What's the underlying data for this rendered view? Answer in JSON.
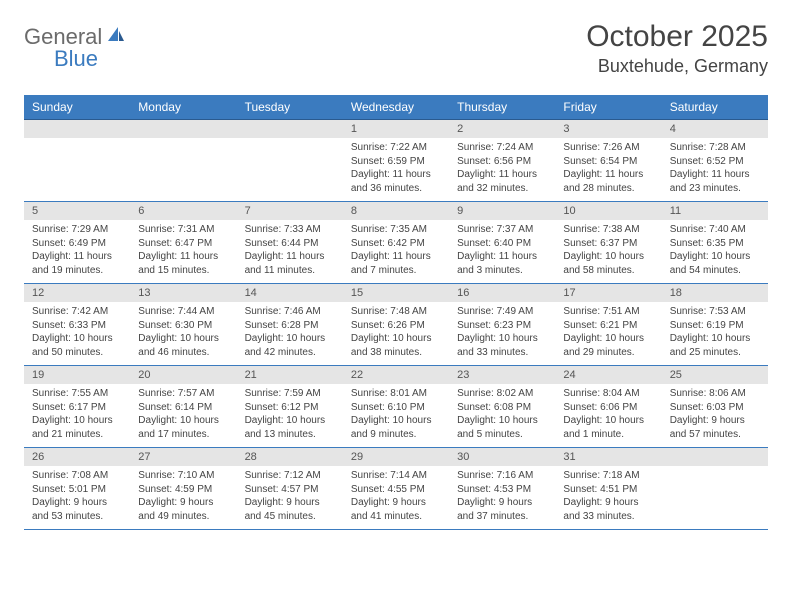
{
  "logo": {
    "text1": "General",
    "text2": "Blue"
  },
  "title": "October 2025",
  "location": "Buxtehude, Germany",
  "header_bg": "#3b7bbf",
  "daynum_bg": "#e5e5e5",
  "border_color": "#3b7bbf",
  "days_of_week": [
    "Sunday",
    "Monday",
    "Tuesday",
    "Wednesday",
    "Thursday",
    "Friday",
    "Saturday"
  ],
  "weeks": [
    [
      {
        "num": "",
        "sunrise": "",
        "sunset": "",
        "daylight": ""
      },
      {
        "num": "",
        "sunrise": "",
        "sunset": "",
        "daylight": ""
      },
      {
        "num": "",
        "sunrise": "",
        "sunset": "",
        "daylight": ""
      },
      {
        "num": "1",
        "sunrise": "Sunrise: 7:22 AM",
        "sunset": "Sunset: 6:59 PM",
        "daylight": "Daylight: 11 hours and 36 minutes."
      },
      {
        "num": "2",
        "sunrise": "Sunrise: 7:24 AM",
        "sunset": "Sunset: 6:56 PM",
        "daylight": "Daylight: 11 hours and 32 minutes."
      },
      {
        "num": "3",
        "sunrise": "Sunrise: 7:26 AM",
        "sunset": "Sunset: 6:54 PM",
        "daylight": "Daylight: 11 hours and 28 minutes."
      },
      {
        "num": "4",
        "sunrise": "Sunrise: 7:28 AM",
        "sunset": "Sunset: 6:52 PM",
        "daylight": "Daylight: 11 hours and 23 minutes."
      }
    ],
    [
      {
        "num": "5",
        "sunrise": "Sunrise: 7:29 AM",
        "sunset": "Sunset: 6:49 PM",
        "daylight": "Daylight: 11 hours and 19 minutes."
      },
      {
        "num": "6",
        "sunrise": "Sunrise: 7:31 AM",
        "sunset": "Sunset: 6:47 PM",
        "daylight": "Daylight: 11 hours and 15 minutes."
      },
      {
        "num": "7",
        "sunrise": "Sunrise: 7:33 AM",
        "sunset": "Sunset: 6:44 PM",
        "daylight": "Daylight: 11 hours and 11 minutes."
      },
      {
        "num": "8",
        "sunrise": "Sunrise: 7:35 AM",
        "sunset": "Sunset: 6:42 PM",
        "daylight": "Daylight: 11 hours and 7 minutes."
      },
      {
        "num": "9",
        "sunrise": "Sunrise: 7:37 AM",
        "sunset": "Sunset: 6:40 PM",
        "daylight": "Daylight: 11 hours and 3 minutes."
      },
      {
        "num": "10",
        "sunrise": "Sunrise: 7:38 AM",
        "sunset": "Sunset: 6:37 PM",
        "daylight": "Daylight: 10 hours and 58 minutes."
      },
      {
        "num": "11",
        "sunrise": "Sunrise: 7:40 AM",
        "sunset": "Sunset: 6:35 PM",
        "daylight": "Daylight: 10 hours and 54 minutes."
      }
    ],
    [
      {
        "num": "12",
        "sunrise": "Sunrise: 7:42 AM",
        "sunset": "Sunset: 6:33 PM",
        "daylight": "Daylight: 10 hours and 50 minutes."
      },
      {
        "num": "13",
        "sunrise": "Sunrise: 7:44 AM",
        "sunset": "Sunset: 6:30 PM",
        "daylight": "Daylight: 10 hours and 46 minutes."
      },
      {
        "num": "14",
        "sunrise": "Sunrise: 7:46 AM",
        "sunset": "Sunset: 6:28 PM",
        "daylight": "Daylight: 10 hours and 42 minutes."
      },
      {
        "num": "15",
        "sunrise": "Sunrise: 7:48 AM",
        "sunset": "Sunset: 6:26 PM",
        "daylight": "Daylight: 10 hours and 38 minutes."
      },
      {
        "num": "16",
        "sunrise": "Sunrise: 7:49 AM",
        "sunset": "Sunset: 6:23 PM",
        "daylight": "Daylight: 10 hours and 33 minutes."
      },
      {
        "num": "17",
        "sunrise": "Sunrise: 7:51 AM",
        "sunset": "Sunset: 6:21 PM",
        "daylight": "Daylight: 10 hours and 29 minutes."
      },
      {
        "num": "18",
        "sunrise": "Sunrise: 7:53 AM",
        "sunset": "Sunset: 6:19 PM",
        "daylight": "Daylight: 10 hours and 25 minutes."
      }
    ],
    [
      {
        "num": "19",
        "sunrise": "Sunrise: 7:55 AM",
        "sunset": "Sunset: 6:17 PM",
        "daylight": "Daylight: 10 hours and 21 minutes."
      },
      {
        "num": "20",
        "sunrise": "Sunrise: 7:57 AM",
        "sunset": "Sunset: 6:14 PM",
        "daylight": "Daylight: 10 hours and 17 minutes."
      },
      {
        "num": "21",
        "sunrise": "Sunrise: 7:59 AM",
        "sunset": "Sunset: 6:12 PM",
        "daylight": "Daylight: 10 hours and 13 minutes."
      },
      {
        "num": "22",
        "sunrise": "Sunrise: 8:01 AM",
        "sunset": "Sunset: 6:10 PM",
        "daylight": "Daylight: 10 hours and 9 minutes."
      },
      {
        "num": "23",
        "sunrise": "Sunrise: 8:02 AM",
        "sunset": "Sunset: 6:08 PM",
        "daylight": "Daylight: 10 hours and 5 minutes."
      },
      {
        "num": "24",
        "sunrise": "Sunrise: 8:04 AM",
        "sunset": "Sunset: 6:06 PM",
        "daylight": "Daylight: 10 hours and 1 minute."
      },
      {
        "num": "25",
        "sunrise": "Sunrise: 8:06 AM",
        "sunset": "Sunset: 6:03 PM",
        "daylight": "Daylight: 9 hours and 57 minutes."
      }
    ],
    [
      {
        "num": "26",
        "sunrise": "Sunrise: 7:08 AM",
        "sunset": "Sunset: 5:01 PM",
        "daylight": "Daylight: 9 hours and 53 minutes."
      },
      {
        "num": "27",
        "sunrise": "Sunrise: 7:10 AM",
        "sunset": "Sunset: 4:59 PM",
        "daylight": "Daylight: 9 hours and 49 minutes."
      },
      {
        "num": "28",
        "sunrise": "Sunrise: 7:12 AM",
        "sunset": "Sunset: 4:57 PM",
        "daylight": "Daylight: 9 hours and 45 minutes."
      },
      {
        "num": "29",
        "sunrise": "Sunrise: 7:14 AM",
        "sunset": "Sunset: 4:55 PM",
        "daylight": "Daylight: 9 hours and 41 minutes."
      },
      {
        "num": "30",
        "sunrise": "Sunrise: 7:16 AM",
        "sunset": "Sunset: 4:53 PM",
        "daylight": "Daylight: 9 hours and 37 minutes."
      },
      {
        "num": "31",
        "sunrise": "Sunrise: 7:18 AM",
        "sunset": "Sunset: 4:51 PM",
        "daylight": "Daylight: 9 hours and 33 minutes."
      },
      {
        "num": "",
        "sunrise": "",
        "sunset": "",
        "daylight": ""
      }
    ]
  ]
}
